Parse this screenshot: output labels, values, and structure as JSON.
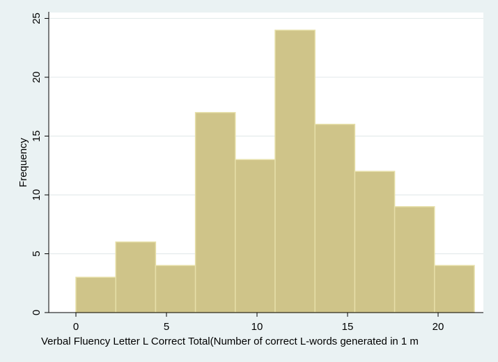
{
  "chart_data": {
    "type": "bar",
    "subtype": "histogram",
    "xlabel": "Verbal Fluency Letter L Correct Total(Number of correct L-words generated in 1 m",
    "ylabel": "Frequency",
    "bins": [
      {
        "start": 0.0,
        "end": 2.2,
        "count": 3
      },
      {
        "start": 2.2,
        "end": 4.4,
        "count": 6
      },
      {
        "start": 4.4,
        "end": 6.6,
        "count": 4
      },
      {
        "start": 6.6,
        "end": 8.8,
        "count": 17
      },
      {
        "start": 8.8,
        "end": 11.0,
        "count": 13
      },
      {
        "start": 11.0,
        "end": 13.2,
        "count": 24
      },
      {
        "start": 13.2,
        "end": 15.4,
        "count": 16
      },
      {
        "start": 15.4,
        "end": 17.6,
        "count": 12
      },
      {
        "start": 17.6,
        "end": 19.8,
        "count": 9
      },
      {
        "start": 19.8,
        "end": 22.0,
        "count": 4
      }
    ],
    "x_ticks": [
      "0",
      "5",
      "10",
      "15",
      "20"
    ],
    "y_ticks": [
      "0",
      "5",
      "10",
      "15",
      "20",
      "25"
    ],
    "xlim": [
      -1.5,
      22.5
    ],
    "ylim": [
      0,
      25.5
    ],
    "grid": true,
    "colors": {
      "background": "#eaf2f3",
      "plot_background": "#ffffff",
      "bar_fill": "#cfc489",
      "bar_edge": "#e6dfa8",
      "grid": "#e4ebec",
      "axis": "#000000"
    }
  }
}
